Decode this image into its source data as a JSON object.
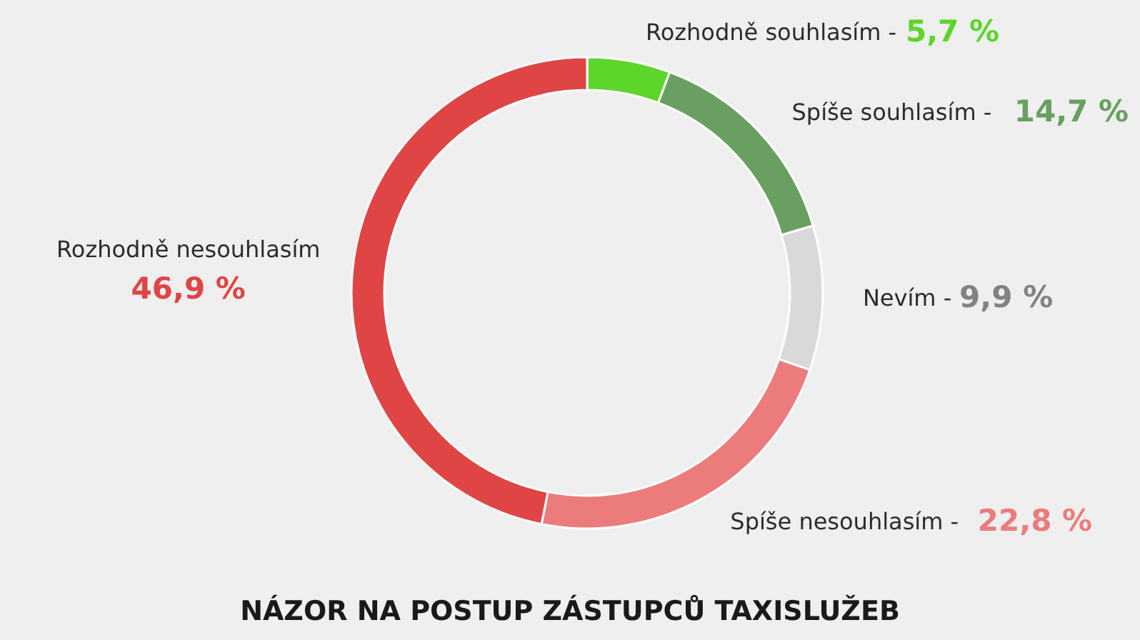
{
  "chart_data": {
    "type": "donut",
    "title": "NÁZOR NA POSTUP ZÁSTUPCŮ TAXISLUŽEB",
    "categories": [
      "Rozhodně souhlasím -",
      "Spíše souhlasím -",
      "Nevím -",
      "Spíše nesouhlasím -",
      "Rozhodně nesouhlasím"
    ],
    "values": [
      5.7,
      14.7,
      9.9,
      22.8,
      46.9
    ],
    "colors": [
      "#5dd62c",
      "#6a9f62",
      "#d9d9d9",
      "#ec7c7c",
      "#e04545"
    ],
    "value_labels": [
      "5,7 %",
      "14,7 %",
      "9,9 %",
      "22,8 %",
      "46,9 %"
    ]
  }
}
